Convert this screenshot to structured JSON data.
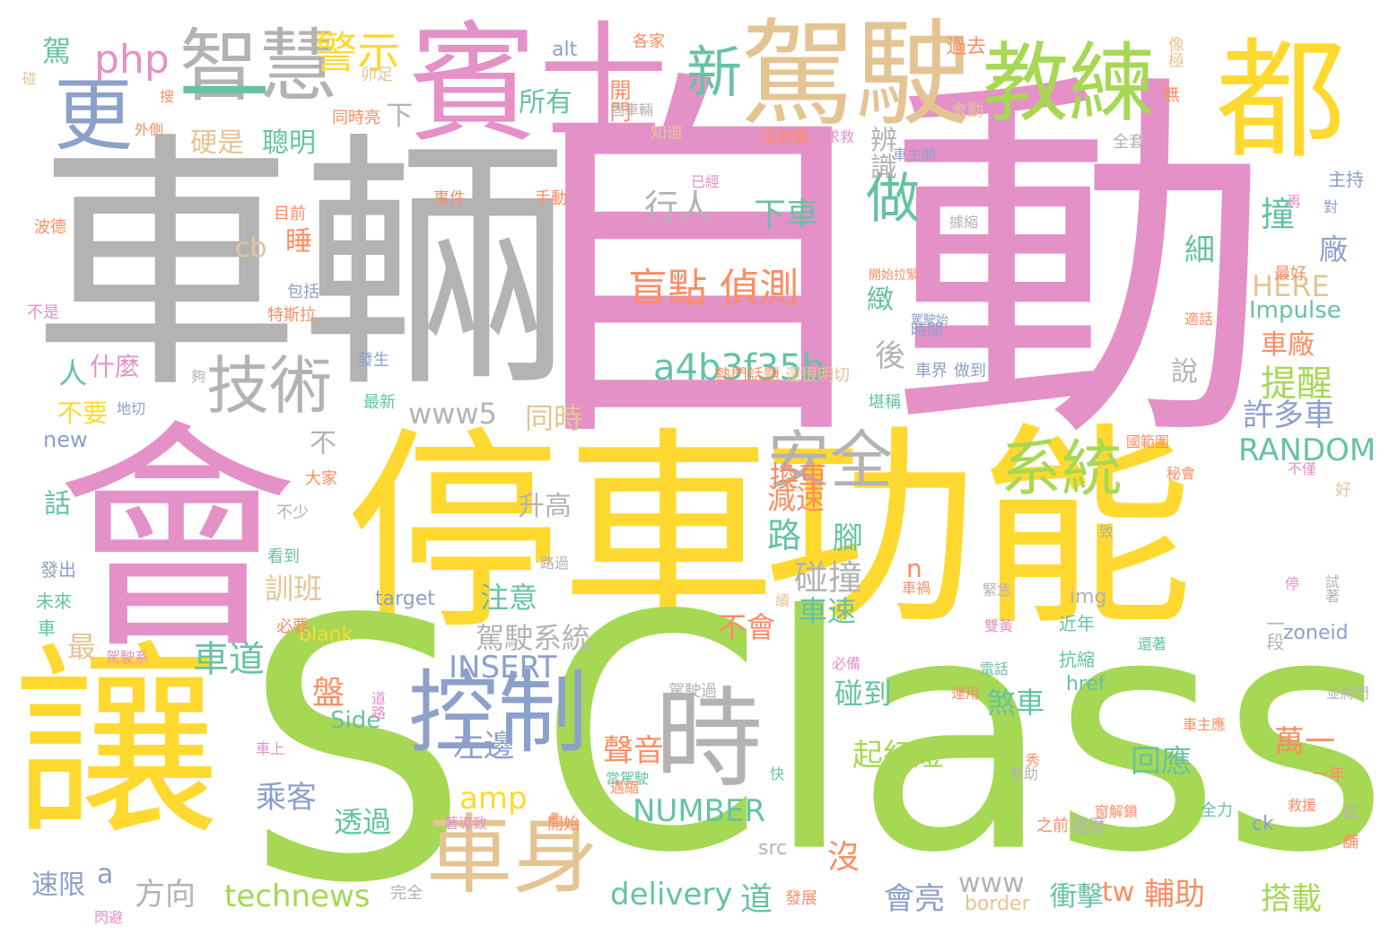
{
  "words": [
    {
      "text": "自動",
      "color": "#e491c8"
    },
    {
      "text": "車輛",
      "color": "#b3b3b3"
    },
    {
      "text": "會",
      "color": "#e491c8"
    },
    {
      "text": "停車",
      "color": "#ffd92f"
    },
    {
      "text": "功能",
      "color": "#ffd92f"
    },
    {
      "text": "S",
      "color": "#a6d854"
    },
    {
      "text": "Class",
      "color": "#a6d854"
    },
    {
      "text": "讓",
      "color": "#ffd92f"
    },
    {
      "text": "賓士",
      "color": "#e491c8"
    },
    {
      "text": "都",
      "color": "#ffd92f"
    },
    {
      "text": "駕駛",
      "color": "#e5c494"
    },
    {
      "text": "教練",
      "color": "#a6d854"
    },
    {
      "text": "智慧",
      "color": "#b3b3b3"
    },
    {
      "text": "一",
      "color": "#66c2a5"
    },
    {
      "text": "更",
      "color": "#8da0cb"
    },
    {
      "text": "時",
      "color": "#b3b3b3"
    },
    {
      "text": "控制",
      "color": "#8da0cb"
    },
    {
      "text": "車身",
      "color": "#e5c494"
    },
    {
      "text": "技術",
      "color": "#b3b3b3"
    },
    {
      "text": "安全",
      "color": "#b3b3b3"
    },
    {
      "text": "系統",
      "color": "#a6d854"
    },
    {
      "text": "新",
      "color": "#66c2a5"
    },
    {
      "text": "做",
      "color": "#66c2a5"
    },
    {
      "text": "警示",
      "color": "#ffd92f"
    },
    {
      "text": "php",
      "color": "#e491c8"
    },
    {
      "text": "盲點 偵測",
      "color": "#fc8d62"
    },
    {
      "text": "a4b3f35b",
      "color": "#66c2a5"
    },
    {
      "text": "行人",
      "color": "#b3b3b3"
    },
    {
      "text": "下車",
      "color": "#66c2a5"
    },
    {
      "text": "技術",
      "color": "#b3b3b3"
    },
    {
      "text": "撞",
      "color": "#66c2a5"
    },
    {
      "text": "提醒",
      "color": "#a6d854"
    },
    {
      "text": "車廠",
      "color": "#fc8d62"
    },
    {
      "text": "許多車",
      "color": "#8da0cb"
    },
    {
      "text": "RANDOM",
      "color": "#66c2a5"
    },
    {
      "text": "HERE",
      "color": "#e5c494"
    },
    {
      "text": "Impulse",
      "color": "#66c2a5"
    },
    {
      "text": "INSERT",
      "color": "#8da0cb"
    },
    {
      "text": "amp",
      "color": "#ffd92f"
    },
    {
      "text": "NUMBER",
      "color": "#66c2a5"
    },
    {
      "text": "delivery",
      "color": "#66c2a5"
    },
    {
      "text": "technews",
      "color": "#a6d854"
    },
    {
      "text": "方向",
      "color": "#b3b3b3"
    },
    {
      "text": "乘客",
      "color": "#8da0cb"
    },
    {
      "text": "左邊",
      "color": "#8da0cb"
    },
    {
      "text": "聲音",
      "color": "#fc8d62"
    },
    {
      "text": "起紅燈",
      "color": "#a6d854"
    },
    {
      "text": "回應",
      "color": "#66c2a5"
    },
    {
      "text": "萬一",
      "color": "#fc8d62"
    },
    {
      "text": "會亮",
      "color": "#8da0cb"
    },
    {
      "text": "輔助",
      "color": "#fc8d62"
    },
    {
      "text": "搭載",
      "color": "#a6d854"
    },
    {
      "text": "車道",
      "color": "#66c2a5"
    },
    {
      "text": "駕駛系統",
      "color": "#b3b3b3"
    },
    {
      "text": "注意",
      "color": "#66c2a5"
    },
    {
      "text": "訓班",
      "color": "#e5c494"
    },
    {
      "text": "碰撞",
      "color": "#b3b3b3"
    },
    {
      "text": "車速",
      "color": "#66c2a5"
    },
    {
      "text": "換車",
      "color": "#fc8d62"
    },
    {
      "text": "減速",
      "color": "#fc8d62"
    },
    {
      "text": "路",
      "color": "#66c2a5"
    },
    {
      "text": "腳",
      "color": "#66c2a5"
    },
    {
      "text": "不會",
      "color": "#fc8d62"
    },
    {
      "text": "碰到",
      "color": "#66c2a5"
    },
    {
      "text": "煞車",
      "color": "#66c2a5"
    },
    {
      "text": "www5",
      "color": "#b3b3b3"
    },
    {
      "text": "同時",
      "color": "#e5c494"
    },
    {
      "text": "後",
      "color": "#b3b3b3"
    },
    {
      "text": "緻",
      "color": "#66c2a5"
    },
    {
      "text": "細",
      "color": "#66c2a5"
    },
    {
      "text": "廠",
      "color": "#8da0cb"
    },
    {
      "text": "說",
      "color": "#b3b3b3"
    },
    {
      "text": "辨識",
      "color": "#b3b3b3"
    },
    {
      "text": "硬是",
      "color": "#e5c494"
    },
    {
      "text": "聰明",
      "color": "#66c2a5"
    },
    {
      "text": "所有",
      "color": "#66c2a5"
    },
    {
      "text": "睡",
      "color": "#fc8d62"
    },
    {
      "text": "cb",
      "color": "#e5c494"
    },
    {
      "text": "人",
      "color": "#66c2a5"
    },
    {
      "text": "什麼",
      "color": "#e491c8"
    },
    {
      "text": "不要",
      "color": "#ffd92f"
    },
    {
      "text": "new",
      "color": "#8da0cb"
    },
    {
      "text": "話",
      "color": "#66c2a5"
    },
    {
      "text": "盤",
      "color": "#fc8d62"
    },
    {
      "text": "Side",
      "color": "#66c2a5"
    },
    {
      "text": "最",
      "color": "#e5c494"
    },
    {
      "text": "透過",
      "color": "#66c2a5"
    },
    {
      "text": "速限",
      "color": "#8da0cb"
    },
    {
      "text": "a",
      "color": "#8da0cb"
    },
    {
      "text": "道",
      "color": "#66c2a5"
    },
    {
      "text": "沒",
      "color": "#fc8d62"
    },
    {
      "text": "www",
      "color": "#b3b3b3"
    },
    {
      "text": "tw",
      "color": "#fc8d62"
    },
    {
      "text": "衝擊",
      "color": "#66c2a5"
    },
    {
      "text": "升高",
      "color": "#b3b3b3"
    },
    {
      "text": "不",
      "color": "#b3b3b3"
    },
    {
      "text": "n",
      "color": "#fc8d62"
    },
    {
      "text": "駕",
      "color": "#66c2a5"
    },
    {
      "text": "alt",
      "color": "#8da0cb"
    },
    {
      "text": "下",
      "color": "#b3b3b3"
    },
    {
      "text": "開門",
      "color": "#fc8d62"
    },
    {
      "text": "過去",
      "color": "#fc8d62"
    },
    {
      "text": "會動",
      "color": "#e5c494"
    },
    {
      "text": "無",
      "color": "#fc8d62"
    },
    {
      "text": "像極",
      "color": "#e5c494"
    },
    {
      "text": "主持",
      "color": "#8da0cb"
    },
    {
      "text": "最好",
      "color": "#fc8d62"
    },
    {
      "text": "target",
      "color": "#8da0cb"
    },
    {
      "text": "img",
      "color": "#b3b3b3"
    },
    {
      "text": "zoneid",
      "color": "#8da0cb"
    },
    {
      "text": "blank",
      "color": "#ffd92f"
    },
    {
      "text": "href",
      "color": "#66c2a5"
    },
    {
      "text": "avw",
      "color": "#a6d854"
    },
    {
      "text": "src",
      "color": "#b3b3b3"
    },
    {
      "text": "border",
      "color": "#e5c494"
    },
    {
      "text": "ck",
      "color": "#8da0cb"
    },
    {
      "text": "近年",
      "color": "#66c2a5"
    },
    {
      "text": "一段",
      "color": "#b3b3b3"
    },
    {
      "text": "抗縮",
      "color": "#66c2a5"
    },
    {
      "text": "全力",
      "color": "#66c2a5"
    },
    {
      "text": "還麼",
      "color": "#b3b3b3"
    },
    {
      "text": "好",
      "color": "#e5c494"
    },
    {
      "text": "一年",
      "color": "#fc8d62"
    },
    {
      "text": "車主應",
      "color": "#fc8d62"
    },
    {
      "text": "運用",
      "color": "#fc8d62"
    },
    {
      "text": "必備",
      "color": "#e491c8"
    },
    {
      "text": "駕駛過",
      "color": "#b3b3b3"
    },
    {
      "text": "做到",
      "color": "#8da0cb"
    },
    {
      "text": "車界",
      "color": "#8da0cb"
    },
    {
      "text": "時間",
      "color": "#8da0cb"
    },
    {
      "text": "堪稱",
      "color": "#66c2a5"
    },
    {
      "text": "熱門話題",
      "color": "#fc8d62"
    },
    {
      "text": "還很明切",
      "color": "#e5c494"
    },
    {
      "text": "最新",
      "color": "#66c2a5"
    },
    {
      "text": "發生",
      "color": "#8da0cb"
    },
    {
      "text": "不少",
      "color": "#b3b3b3"
    },
    {
      "text": "大家",
      "color": "#fc8d62"
    },
    {
      "text": "看到",
      "color": "#66c2a5"
    },
    {
      "text": "發出",
      "color": "#8da0cb"
    },
    {
      "text": "未來",
      "color": "#66c2a5"
    },
    {
      "text": "車",
      "color": "#66c2a5"
    },
    {
      "text": "必要",
      "color": "#fc8d62"
    },
    {
      "text": "駕駛系",
      "color": "#e491c8"
    },
    {
      "text": "不是",
      "color": "#e491c8"
    },
    {
      "text": "波德",
      "color": "#fc8d62"
    },
    {
      "text": "包括",
      "color": "#8da0cb"
    },
    {
      "text": "特斯拉",
      "color": "#fc8d62"
    },
    {
      "text": "目前",
      "color": "#fc8d62"
    },
    {
      "text": "事件",
      "color": "#fc8d62"
    },
    {
      "text": "手動",
      "color": "#fc8d62"
    },
    {
      "text": "知道",
      "color": "#e5c494"
    },
    {
      "text": "同時亮",
      "color": "#fc8d62"
    },
    {
      "text": "外側",
      "color": "#fc8d62"
    },
    {
      "text": "卯足",
      "color": "#e5c494"
    },
    {
      "text": "各家",
      "color": "#fc8d62"
    },
    {
      "text": "全套",
      "color": "#b3b3b3"
    },
    {
      "text": "車主開",
      "color": "#8da0cb"
    },
    {
      "text": "沒有觸",
      "color": "#fc8d62"
    },
    {
      "text": "求救",
      "color": "#e491c8"
    },
    {
      "text": "開始拉緊",
      "color": "#fc8d62"
    },
    {
      "text": "駕駛始",
      "color": "#8da0cb"
    },
    {
      "text": "適話",
      "color": "#fc8d62"
    },
    {
      "text": "國範圍",
      "color": "#fc8d62"
    },
    {
      "text": "不僅",
      "color": "#e491c8"
    },
    {
      "text": "秘會",
      "color": "#fc8d62"
    },
    {
      "text": "完全",
      "color": "#b3b3b3"
    },
    {
      "text": "開始",
      "color": "#fc8d62"
    },
    {
      "text": "發展",
      "color": "#fc8d62"
    },
    {
      "text": "之前",
      "color": "#fc8d62"
    },
    {
      "text": "幫助",
      "color": "#b3b3b3"
    },
    {
      "text": "啟",
      "color": "#b3b3b3"
    },
    {
      "text": "舖",
      "color": "#fc8d62"
    },
    {
      "text": "救援",
      "color": "#fc8d62"
    },
    {
      "text": "並將門",
      "color": "#b3b3b3"
    },
    {
      "text": "試著",
      "color": "#b3b3b3"
    },
    {
      "text": "停",
      "color": "#e491c8"
    },
    {
      "text": "再",
      "color": "#e491c8"
    },
    {
      "text": "對",
      "color": "#8da0cb"
    },
    {
      "text": "道路",
      "color": "#e491c8"
    },
    {
      "text": "車上",
      "color": "#e491c8"
    },
    {
      "text": "快",
      "color": "#66c2a5"
    },
    {
      "text": "地切",
      "color": "#8da0cb"
    },
    {
      "text": "碰",
      "color": "#e5c494"
    },
    {
      "text": "搜",
      "color": "#fc8d62"
    },
    {
      "text": "車禍",
      "color": "#fc8d62"
    },
    {
      "text": "緊急",
      "color": "#b3b3b3"
    },
    {
      "text": "電話",
      "color": "#66c2a5"
    },
    {
      "text": "還著",
      "color": "#66c2a5"
    },
    {
      "text": "窗解鎖",
      "color": "#fc8d62"
    },
    {
      "text": "著導致",
      "color": "#e491c8"
    },
    {
      "text": "秀",
      "color": "#fc8d62"
    },
    {
      "text": "當駕駛",
      "color": "#66c2a5"
    },
    {
      "text": "路過",
      "color": "#b3b3b3"
    },
    {
      "text": "續",
      "color": "#e5c494"
    },
    {
      "text": "雙黃",
      "color": "#e491c8"
    },
    {
      "text": "固車輛",
      "color": "#b3b3b3"
    },
    {
      "text": "遇縮",
      "color": "#fc8d62"
    },
    {
      "text": "閃避",
      "color": "#e491c8"
    },
    {
      "text": "夠",
      "color": "#b3b3b3"
    },
    {
      "text": "已經",
      "color": "#e491c8"
    },
    {
      "text": "據縮",
      "color": "#b3b3b3"
    },
    {
      "text": "致",
      "color": "#b3b3b3"
    }
  ]
}
